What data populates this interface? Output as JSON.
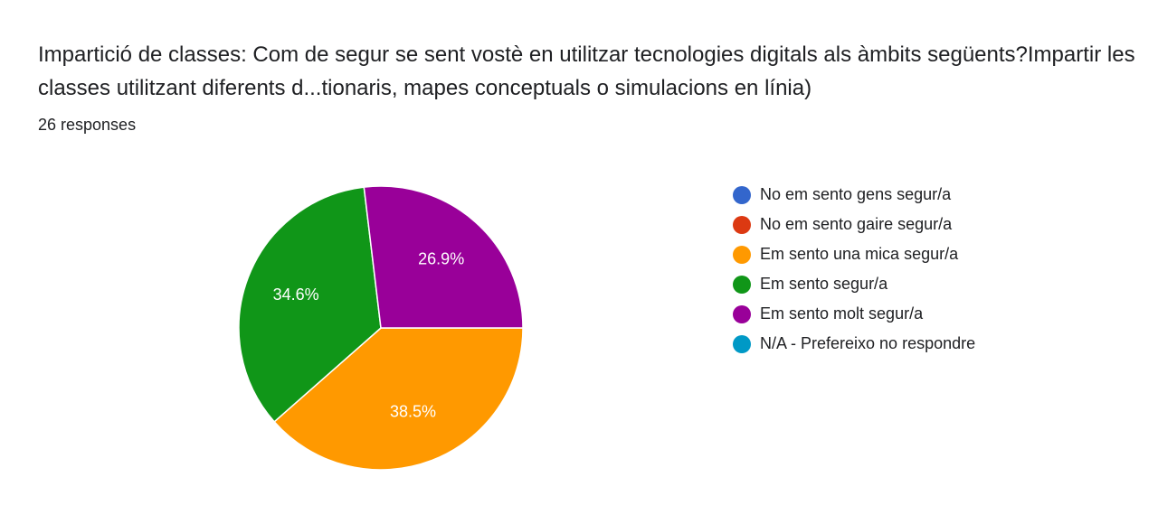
{
  "chart_data": {
    "type": "pie",
    "title": "Impartició de classes: Com de segur se sent vostè en utilitzar tecnologies digitals als àmbits següents?Impartir les classes utilitzant diferents d...tionaris, mapes conceptuals o simulacions en línia)",
    "subtitle": "26 responses",
    "categories": [
      "No em sento gens segur/a",
      "No em sento gaire segur/a",
      "Em sento una mica segur/a",
      "Em sento segur/a",
      "Em sento molt segur/a",
      "N/A - Prefereixo no respondre"
    ],
    "values": [
      0,
      0,
      38.5,
      34.6,
      26.9,
      0
    ],
    "value_labels": [
      null,
      null,
      "38.5%",
      "34.6%",
      "26.9%",
      null
    ],
    "colors": [
      "#3366cc",
      "#dc3912",
      "#ff9900",
      "#109618",
      "#990099",
      "#0099c6"
    ],
    "legend": "right"
  }
}
